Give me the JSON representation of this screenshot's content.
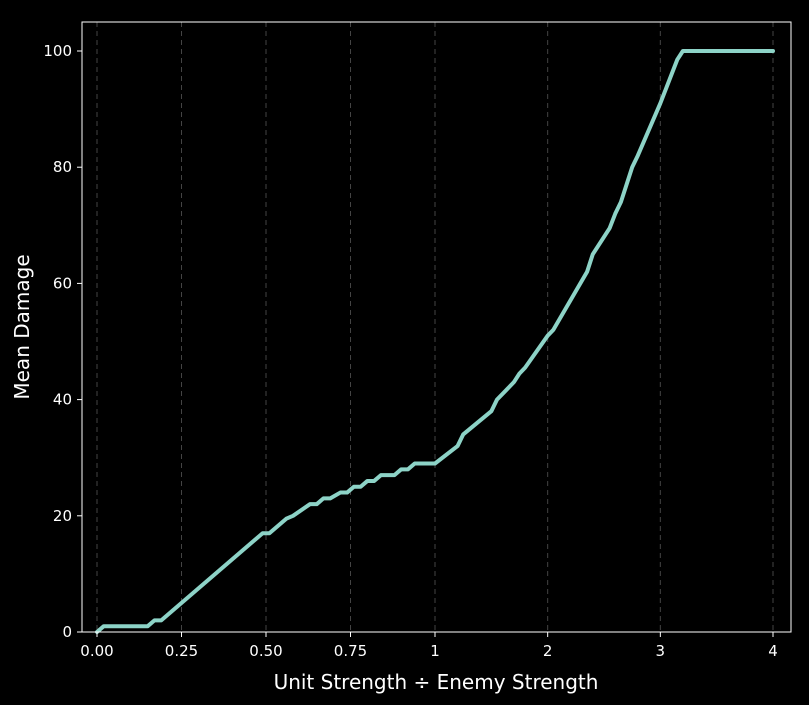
{
  "chart_data": {
    "type": "line",
    "title": "",
    "xlabel": "Unit Strength ÷ Enemy Strength",
    "ylabel": "Mean Damage",
    "x_scale": "piecewise-linear: 0–1 expanded, 1–4 compressed",
    "xlim": [
      0,
      4
    ],
    "ylim": [
      0,
      105
    ],
    "grid": {
      "x": true,
      "y": false,
      "style": "dashed"
    },
    "legend": "none",
    "colors": {
      "background": "#000000",
      "line": "#8dd3c7",
      "text": "#ffffff",
      "grid": "#444444"
    },
    "x_ticks": [
      {
        "value": 0,
        "label": "0.00"
      },
      {
        "value": 0.25,
        "label": "0.25"
      },
      {
        "value": 0.5,
        "label": "0.50"
      },
      {
        "value": 0.75,
        "label": "0.75"
      },
      {
        "value": 1,
        "label": "1"
      },
      {
        "value": 2,
        "label": "2"
      },
      {
        "value": 3,
        "label": "3"
      },
      {
        "value": 4,
        "label": "4"
      }
    ],
    "y_ticks": [
      {
        "value": 0,
        "label": "0"
      },
      {
        "value": 20,
        "label": "20"
      },
      {
        "value": 40,
        "label": "40"
      },
      {
        "value": 60,
        "label": "60"
      },
      {
        "value": 80,
        "label": "80"
      },
      {
        "value": 100,
        "label": "100"
      }
    ],
    "series": [
      {
        "x": [
          0,
          0.02,
          0.15,
          0.17,
          0.19,
          0.49,
          0.51,
          0.56,
          0.58,
          0.63,
          0.65,
          0.67,
          0.69,
          0.72,
          0.74,
          0.76,
          0.78,
          0.8,
          0.82,
          0.84,
          0.88,
          0.9,
          0.92,
          0.94,
          1.0,
          1.2,
          1.25,
          1.5,
          1.55,
          1.7,
          1.75,
          1.8,
          2.0,
          2.05,
          2.35,
          2.4,
          2.55,
          2.6,
          2.65,
          2.75,
          2.8,
          3.0,
          3.1,
          3.15,
          3.2,
          4.0
        ],
        "y": [
          0,
          1,
          1,
          2,
          2,
          17,
          17,
          19.5,
          20,
          22,
          22,
          23,
          23,
          24,
          24,
          25,
          25,
          26,
          26,
          27,
          27,
          28,
          28,
          29,
          29,
          32,
          34,
          38,
          40,
          43,
          44.5,
          45.5,
          51,
          52,
          62,
          65,
          69.5,
          72,
          74,
          80,
          82,
          91,
          96,
          98.5,
          100,
          100
        ]
      }
    ]
  }
}
